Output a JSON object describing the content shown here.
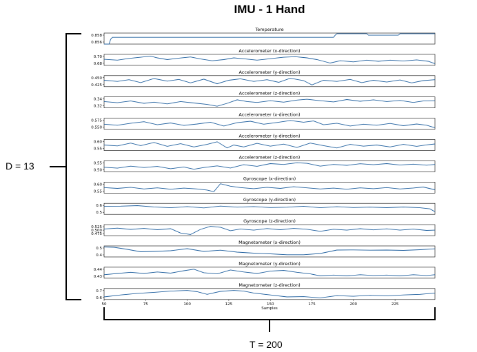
{
  "title": "IMU - 1  Hand",
  "dimension_label": "D = 13",
  "time_label": "T = 200",
  "chart_data": {
    "type": "line",
    "xlabel": "Samples",
    "xlim": [
      50,
      249
    ],
    "x_ticks": [
      50,
      75,
      100,
      125,
      150,
      175,
      200,
      225
    ],
    "line_color": "#1f5f9e",
    "grid": false,
    "panels": [
      {
        "title": "Temperature",
        "yticks": [
          "0.858",
          "0.856"
        ],
        "ylim": [
          0.8556,
          0.8592
        ],
        "series": {
          "x": [
            50,
            53,
            54,
            55,
            188,
            189,
            190,
            208,
            209,
            210,
            227,
            228,
            229,
            249
          ],
          "y": [
            0.8556,
            0.8556,
            0.8572,
            0.8578,
            0.8578,
            0.8585,
            0.859,
            0.859,
            0.8585,
            0.8585,
            0.8585,
            0.859,
            0.859,
            0.859
          ]
        }
      },
      {
        "title": "Accelerometer (x-direction)",
        "yticks": [
          "0.70",
          "0.68"
        ],
        "ylim": [
          0.674,
          0.712
        ],
        "series": {
          "x": [
            50,
            58,
            65,
            72,
            78,
            82,
            88,
            95,
            102,
            108,
            115,
            122,
            128,
            135,
            142,
            150,
            158,
            165,
            172,
            178,
            182,
            186,
            192,
            200,
            208,
            215,
            222,
            230,
            238,
            245,
            249
          ],
          "y": [
            0.695,
            0.692,
            0.698,
            0.702,
            0.706,
            0.7,
            0.694,
            0.699,
            0.703,
            0.696,
            0.69,
            0.694,
            0.7,
            0.696,
            0.692,
            0.697,
            0.702,
            0.704,
            0.7,
            0.694,
            0.688,
            0.682,
            0.69,
            0.686,
            0.692,
            0.688,
            0.692,
            0.689,
            0.693,
            0.688,
            0.68
          ]
        }
      },
      {
        "title": "Accelerometer (y-direction)",
        "yticks": [
          "0.450",
          "0.425"
        ],
        "ylim": [
          0.418,
          0.456
        ],
        "series": {
          "x": [
            50,
            58,
            65,
            72,
            80,
            88,
            95,
            102,
            110,
            118,
            125,
            132,
            140,
            148,
            155,
            162,
            170,
            175,
            182,
            190,
            198,
            205,
            212,
            220,
            228,
            235,
            242,
            249
          ],
          "y": [
            0.44,
            0.436,
            0.442,
            0.432,
            0.446,
            0.437,
            0.443,
            0.431,
            0.444,
            0.428,
            0.44,
            0.445,
            0.436,
            0.442,
            0.433,
            0.447,
            0.439,
            0.424,
            0.44,
            0.436,
            0.443,
            0.432,
            0.44,
            0.434,
            0.441,
            0.431,
            0.439,
            0.442
          ]
        }
      },
      {
        "title": "Accelerometer (z-direction)",
        "yticks": [
          "0.34",
          "0.32"
        ],
        "ylim": [
          0.314,
          0.352
        ],
        "series": {
          "x": [
            50,
            58,
            66,
            74,
            80,
            88,
            96,
            104,
            112,
            118,
            124,
            130,
            136,
            142,
            150,
            158,
            166,
            172,
            180,
            188,
            196,
            204,
            212,
            220,
            228,
            236,
            242,
            249
          ],
          "y": [
            0.336,
            0.332,
            0.338,
            0.33,
            0.334,
            0.328,
            0.336,
            0.331,
            0.326,
            0.32,
            0.33,
            0.342,
            0.336,
            0.333,
            0.339,
            0.334,
            0.341,
            0.344,
            0.339,
            0.335,
            0.343,
            0.337,
            0.342,
            0.336,
            0.34,
            0.333,
            0.338,
            0.339
          ]
        }
      },
      {
        "title": "Accelerometer (x-direction)",
        "yticks": [
          "0.575",
          "0.550"
        ],
        "ylim": [
          0.542,
          0.586
        ],
        "series": {
          "x": [
            50,
            58,
            66,
            74,
            82,
            90,
            98,
            106,
            114,
            122,
            130,
            138,
            146,
            154,
            162,
            170,
            176,
            182,
            190,
            198,
            206,
            214,
            222,
            230,
            238,
            244,
            249
          ],
          "y": [
            0.562,
            0.558,
            0.566,
            0.572,
            0.56,
            0.567,
            0.557,
            0.563,
            0.57,
            0.555,
            0.568,
            0.574,
            0.562,
            0.569,
            0.577,
            0.57,
            0.575,
            0.56,
            0.566,
            0.555,
            0.562,
            0.558,
            0.565,
            0.556,
            0.563,
            0.558,
            0.548
          ]
        }
      },
      {
        "title": "Accelerometer (y-direction)",
        "yticks": [
          "0.60",
          "0.55"
        ],
        "ylim": [
          0.532,
          0.618
        ],
        "series": {
          "x": [
            50,
            58,
            66,
            72,
            80,
            88,
            96,
            104,
            112,
            118,
            124,
            128,
            134,
            142,
            150,
            158,
            166,
            174,
            182,
            190,
            198,
            206,
            214,
            222,
            230,
            238,
            244,
            249
          ],
          "y": [
            0.575,
            0.568,
            0.59,
            0.57,
            0.595,
            0.565,
            0.585,
            0.56,
            0.58,
            0.6,
            0.552,
            0.575,
            0.56,
            0.588,
            0.566,
            0.582,
            0.556,
            0.59,
            0.57,
            0.552,
            0.58,
            0.566,
            0.575,
            0.56,
            0.58,
            0.565,
            0.576,
            0.583
          ]
        }
      },
      {
        "title": "Accelerometer (z-direction)",
        "yticks": [
          "0.55",
          "0.50"
        ],
        "ylim": [
          0.488,
          0.566
        ],
        "series": {
          "x": [
            50,
            58,
            66,
            74,
            82,
            90,
            98,
            104,
            110,
            118,
            126,
            134,
            142,
            150,
            158,
            166,
            172,
            180,
            188,
            196,
            204,
            212,
            220,
            228,
            236,
            244,
            249
          ],
          "y": [
            0.52,
            0.514,
            0.528,
            0.518,
            0.526,
            0.51,
            0.522,
            0.506,
            0.518,
            0.53,
            0.515,
            0.538,
            0.527,
            0.546,
            0.54,
            0.552,
            0.548,
            0.528,
            0.54,
            0.534,
            0.545,
            0.538,
            0.546,
            0.536,
            0.542,
            0.535,
            0.54
          ]
        }
      },
      {
        "title": "Gyroscope (x-direction)",
        "yticks": [
          "0.60",
          "0.55"
        ],
        "ylim": [
          0.538,
          0.618
        ],
        "series": {
          "x": [
            50,
            58,
            66,
            74,
            82,
            90,
            98,
            106,
            112,
            116,
            120,
            126,
            132,
            140,
            148,
            156,
            164,
            172,
            180,
            188,
            196,
            204,
            212,
            220,
            228,
            236,
            242,
            249
          ],
          "y": [
            0.578,
            0.572,
            0.58,
            0.568,
            0.576,
            0.566,
            0.574,
            0.568,
            0.56,
            0.548,
            0.606,
            0.588,
            0.578,
            0.57,
            0.58,
            0.572,
            0.584,
            0.576,
            0.568,
            0.574,
            0.566,
            0.576,
            0.57,
            0.578,
            0.568,
            0.575,
            0.582,
            0.562
          ]
        }
      },
      {
        "title": "Gyroscope (y-direction)",
        "yticks": [
          "0.6",
          "0.5"
        ],
        "ylim": [
          0.47,
          0.64
        ],
        "series": {
          "x": [
            50,
            60,
            70,
            80,
            90,
            100,
            110,
            120,
            130,
            140,
            150,
            160,
            170,
            180,
            190,
            200,
            210,
            220,
            230,
            240,
            246,
            249
          ],
          "y": [
            0.595,
            0.596,
            0.605,
            0.585,
            0.572,
            0.59,
            0.57,
            0.598,
            0.582,
            0.59,
            0.575,
            0.58,
            0.595,
            0.572,
            0.588,
            0.575,
            0.582,
            0.573,
            0.584,
            0.572,
            0.555,
            0.51
          ]
        }
      },
      {
        "title": "Gyroscope (z-direction)",
        "yticks": [
          "0.525",
          "0.500",
          "0.475"
        ],
        "ylim": [
          0.462,
          0.538
        ],
        "series": {
          "x": [
            50,
            58,
            66,
            74,
            82,
            90,
            96,
            102,
            108,
            114,
            120,
            126,
            132,
            140,
            148,
            156,
            164,
            172,
            180,
            188,
            196,
            204,
            212,
            220,
            228,
            236,
            244,
            249
          ],
          "y": [
            0.508,
            0.514,
            0.505,
            0.512,
            0.503,
            0.51,
            0.48,
            0.47,
            0.505,
            0.526,
            0.52,
            0.496,
            0.508,
            0.5,
            0.511,
            0.503,
            0.512,
            0.506,
            0.492,
            0.506,
            0.5,
            0.51,
            0.502,
            0.509,
            0.5,
            0.507,
            0.498,
            0.5
          ]
        }
      },
      {
        "title": "Magnetometer (x-direction)",
        "yticks": [
          "0.5",
          "0.4"
        ],
        "ylim": [
          0.36,
          0.52
        ],
        "series": {
          "x": [
            50,
            56,
            64,
            72,
            80,
            90,
            100,
            110,
            120,
            130,
            140,
            150,
            160,
            170,
            180,
            190,
            200,
            210,
            220,
            230,
            240,
            249
          ],
          "y": [
            0.505,
            0.5,
            0.47,
            0.435,
            0.44,
            0.45,
            0.48,
            0.44,
            0.458,
            0.43,
            0.415,
            0.405,
            0.392,
            0.392,
            0.41,
            0.46,
            0.462,
            0.458,
            0.46,
            0.455,
            0.465,
            0.478
          ]
        }
      },
      {
        "title": "Magnetometer (y-direction)",
        "yticks": [
          "0.44",
          "0.43"
        ],
        "ylim": [
          0.424,
          0.452
        ],
        "series": {
          "x": [
            50,
            58,
            66,
            74,
            82,
            90,
            98,
            104,
            110,
            118,
            126,
            134,
            142,
            150,
            158,
            166,
            174,
            180,
            188,
            196,
            204,
            212,
            220,
            228,
            236,
            244,
            249
          ],
          "y": [
            0.433,
            0.436,
            0.439,
            0.436,
            0.44,
            0.437,
            0.443,
            0.447,
            0.438,
            0.435,
            0.445,
            0.44,
            0.436,
            0.442,
            0.444,
            0.439,
            0.435,
            0.43,
            0.432,
            0.43,
            0.433,
            0.431,
            0.432,
            0.43,
            0.433,
            0.431,
            0.433
          ]
        }
      },
      {
        "title": "Magnetometer (z-direction)",
        "yticks": [
          "0.7",
          "0.6"
        ],
        "ylim": [
          0.56,
          0.73
        ],
        "series": {
          "x": [
            50,
            60,
            70,
            80,
            90,
            100,
            106,
            112,
            120,
            128,
            134,
            140,
            150,
            160,
            170,
            180,
            190,
            200,
            210,
            220,
            230,
            240,
            249
          ],
          "y": [
            0.6,
            0.63,
            0.655,
            0.67,
            0.69,
            0.7,
            0.68,
            0.64,
            0.685,
            0.7,
            0.69,
            0.66,
            0.63,
            0.6,
            0.605,
            0.585,
            0.62,
            0.61,
            0.625,
            0.615,
            0.63,
            0.64,
            0.66
          ]
        }
      }
    ]
  }
}
